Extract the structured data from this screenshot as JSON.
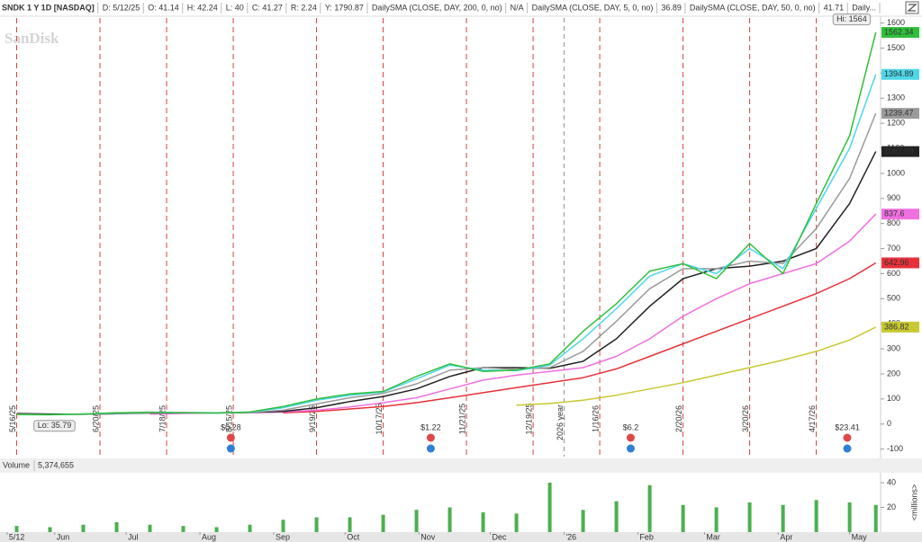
{
  "header": {
    "symbol": "SNDK 1 Y 1D [NASDAQ]",
    "fields": [
      "D: 5/12/25",
      "O: 41.14",
      "H: 42.24",
      "L: 40",
      "C: 41.27",
      "R: 2.24",
      "Y: 1790.87"
    ],
    "studies": [
      {
        "name": "DailySMA (CLOSE, DAY, 200, 0, no)",
        "value": "N/A",
        "color": "#d9a21b"
      },
      {
        "name": "DailySMA (CLOSE, DAY, 5, 0, no)",
        "value": "36.89",
        "color": "#22b8d0"
      },
      {
        "name": "DailySMA (CLOSE, DAY, 50, 0, no)",
        "value": "41.71",
        "color": "#d550cc"
      },
      {
        "name": "Daily...",
        "color": "#e03030"
      }
    ]
  },
  "watermark": "SanDisk",
  "chart_data": [
    {
      "type": "line",
      "xlim": [
        "2025-05-09",
        "2026-05-14"
      ],
      "ylim": [
        -130,
        1620
      ],
      "yticks": [
        -100,
        0,
        100,
        200,
        300,
        400,
        500,
        600,
        700,
        800,
        900,
        1000,
        1100,
        1200,
        1300,
        1400,
        1500,
        1600
      ],
      "grid": false,
      "x": [
        "2025-05-16",
        "2025-05-30",
        "2025-06-13",
        "2025-06-27",
        "2025-07-11",
        "2025-07-25",
        "2025-08-08",
        "2025-08-22",
        "2025-09-05",
        "2025-09-19",
        "2025-10-03",
        "2025-10-17",
        "2025-10-31",
        "2025-11-14",
        "2025-11-28",
        "2025-12-12",
        "2025-12-26",
        "2026-01-09",
        "2026-01-23",
        "2026-02-06",
        "2026-02-20",
        "2026-03-06",
        "2026-03-20",
        "2026-04-03",
        "2026-04-17",
        "2026-05-01",
        "2026-05-12"
      ],
      "series": [
        {
          "color": "#c8c832",
          "values": [
            null,
            null,
            null,
            null,
            null,
            null,
            null,
            null,
            null,
            null,
            null,
            null,
            null,
            null,
            null,
            75,
            82,
            95,
            115,
            140,
            165,
            195,
            225,
            255,
            290,
            335,
            386.82
          ]
        },
        {
          "color": "#e8303a",
          "values": [
            null,
            null,
            null,
            null,
            null,
            null,
            null,
            null,
            45,
            50,
            60,
            70,
            85,
            105,
            125,
            145,
            165,
            185,
            220,
            270,
            320,
            370,
            420,
            470,
            520,
            580,
            642.96
          ]
        },
        {
          "color": "#f070e0",
          "values": [
            null,
            null,
            null,
            null,
            40,
            42,
            44,
            45,
            48,
            55,
            68,
            85,
            105,
            140,
            175,
            195,
            210,
            225,
            270,
            340,
            430,
            500,
            560,
            600,
            640,
            730,
            837.6
          ]
        },
        {
          "color": "#222222",
          "values": [
            42,
            40,
            39,
            41,
            44,
            45,
            45,
            46,
            50,
            65,
            90,
            110,
            140,
            190,
            225,
            225,
            222,
            250,
            340,
            470,
            580,
            620,
            630,
            650,
            700,
            880,
            1087.09
          ]
        },
        {
          "color": "#9a9a9a",
          "values": [
            40,
            38,
            39,
            42,
            45,
            46,
            45,
            46,
            55,
            80,
            105,
            122,
            160,
            215,
            225,
            218,
            225,
            290,
            410,
            540,
            620,
            620,
            650,
            640,
            780,
            980,
            1239.47
          ]
        },
        {
          "color": "#4dd6e8",
          "values": [
            38,
            37,
            40,
            44,
            47,
            45,
            44,
            47,
            65,
            95,
            115,
            128,
            180,
            235,
            215,
            213,
            235,
            340,
            460,
            590,
            640,
            600,
            700,
            620,
            860,
            1100,
            1394.89
          ]
        },
        {
          "color": "#2fbf3a",
          "values": [
            38,
            37,
            40,
            45,
            47,
            45,
            44,
            48,
            70,
            100,
            120,
            130,
            190,
            240,
            210,
            215,
            240,
            370,
            480,
            610,
            640,
            580,
            720,
            600,
            880,
            1150,
            1562.34
          ]
        }
      ],
      "annotations": [
        {
          "label": "Hi: 1564",
          "x": "2026-05-12",
          "y": 1564
        },
        {
          "label": "Lo: 35.79",
          "x": "2025-05-21",
          "y": 35.79
        }
      ],
      "expirations": [
        {
          "x": "2025-05-16",
          "label": "5/16/25"
        },
        {
          "x": "2025-06-20",
          "label": "6/20/25"
        },
        {
          "x": "2025-07-18",
          "label": "7/18/25"
        },
        {
          "x": "2025-08-15",
          "label": "8/15/25"
        },
        {
          "x": "2025-09-19",
          "label": "9/19/25"
        },
        {
          "x": "2025-10-17",
          "label": "10/17/25"
        },
        {
          "x": "2025-11-21",
          "label": "11/21/25"
        },
        {
          "x": "2025-12-19",
          "label": "12/19/25"
        },
        {
          "x": "2026-01-16",
          "label": "1/16/26"
        },
        {
          "x": "2026-02-20",
          "label": "2/20/26"
        },
        {
          "x": "2026-03-20",
          "label": "3/20/26"
        },
        {
          "x": "2026-04-17",
          "label": "4/17/26"
        }
      ],
      "year_line": {
        "x": "2026-01-01",
        "label": "2026 year"
      },
      "events": [
        {
          "x": "2025-08-14",
          "label": "$0.28"
        },
        {
          "x": "2025-11-06",
          "label": "$1.22"
        },
        {
          "x": "2026-01-29",
          "label": "$6.2"
        },
        {
          "x": "2026-04-30",
          "label": "$23.41"
        }
      ]
    },
    {
      "type": "bar",
      "title": "Volume",
      "current": "5,374,655",
      "y_label": "<millions>",
      "color": "#4caf50",
      "xlim": [
        "2025-05-09",
        "2026-05-14"
      ],
      "ylim": [
        0,
        48
      ],
      "yticks": [
        20,
        40
      ],
      "xticks": [
        {
          "value": "2025-05-12",
          "label": "5/12"
        },
        {
          "value": "2025-06-01",
          "label": "Jun"
        },
        {
          "value": "2025-07-01",
          "label": "Jul"
        },
        {
          "value": "2025-08-01",
          "label": "Aug"
        },
        {
          "value": "2025-09-01",
          "label": "Sep"
        },
        {
          "value": "2025-10-01",
          "label": "Oct"
        },
        {
          "value": "2025-11-01",
          "label": "Nov"
        },
        {
          "value": "2025-12-01",
          "label": "Dec"
        },
        {
          "value": "2026-01-01",
          "label": "'26"
        },
        {
          "value": "2026-02-01",
          "label": "Feb"
        },
        {
          "value": "2026-03-01",
          "label": "Mar"
        },
        {
          "value": "2026-04-01",
          "label": "Apr"
        },
        {
          "value": "2026-05-01",
          "label": "May"
        }
      ],
      "x": [
        "2025-05-16",
        "2025-05-30",
        "2025-06-13",
        "2025-06-27",
        "2025-07-11",
        "2025-07-25",
        "2025-08-08",
        "2025-08-22",
        "2025-09-05",
        "2025-09-19",
        "2025-10-03",
        "2025-10-17",
        "2025-10-31",
        "2025-11-14",
        "2025-11-28",
        "2025-12-12",
        "2025-12-26",
        "2026-01-09",
        "2026-01-23",
        "2026-02-06",
        "2026-02-20",
        "2026-03-06",
        "2026-03-20",
        "2026-04-03",
        "2026-04-17",
        "2026-05-01",
        "2026-05-12"
      ],
      "values": [
        5,
        4,
        6,
        8,
        6,
        5,
        4,
        6,
        10,
        12,
        12,
        14,
        18,
        20,
        16,
        15,
        40,
        18,
        25,
        38,
        22,
        20,
        24,
        22,
        26,
        24,
        22
      ]
    }
  ]
}
